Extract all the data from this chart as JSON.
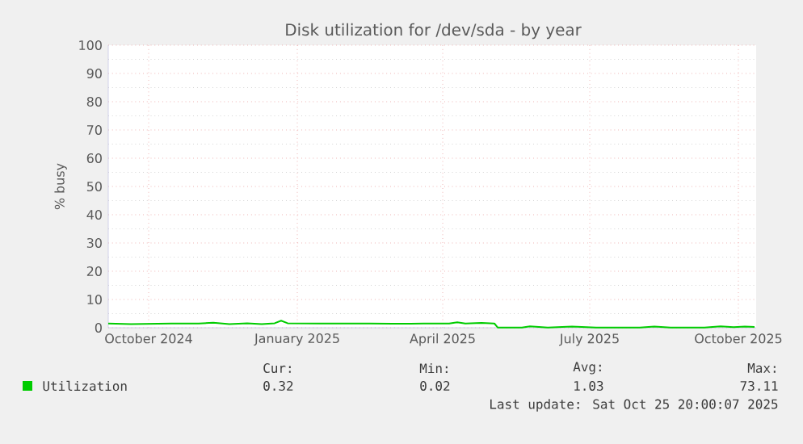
{
  "chart_data": {
    "type": "line",
    "title": "Disk utilization for /dev/sda - by year",
    "ylabel": "% busy",
    "x": [
      "2024-09-06",
      "2024-09-20",
      "2024-10-15",
      "2024-11-01",
      "2024-11-10",
      "2024-11-20",
      "2024-12-01",
      "2024-12-10",
      "2024-12-18",
      "2024-12-22",
      "2024-12-26",
      "2025-01-15",
      "2025-02-15",
      "2025-03-01",
      "2025-03-20",
      "2025-04-05",
      "2025-04-10",
      "2025-04-15",
      "2025-04-25",
      "2025-05-03",
      "2025-05-05",
      "2025-05-20",
      "2025-05-25",
      "2025-06-05",
      "2025-06-20",
      "2025-07-05",
      "2025-08-01",
      "2025-08-10",
      "2025-08-20",
      "2025-09-10",
      "2025-09-20",
      "2025-09-28",
      "2025-10-05",
      "2025-10-11"
    ],
    "series": [
      {
        "name": "Utilization",
        "color": "#00cc00",
        "values": [
          1.5,
          1.3,
          1.5,
          1.5,
          1.8,
          1.3,
          1.6,
          1.3,
          1.6,
          2.5,
          1.6,
          1.5,
          1.5,
          1.4,
          1.5,
          1.5,
          1.9,
          1.5,
          1.7,
          1.5,
          0.1,
          0.1,
          0.5,
          0.1,
          0.4,
          0.1,
          0.1,
          0.4,
          0.1,
          0.1,
          0.5,
          0.2,
          0.4,
          0.3
        ]
      }
    ],
    "xlim": [
      "2024-09-06",
      "2025-10-12"
    ],
    "xticks": [
      {
        "value": "2024-10-01",
        "label": "October 2024"
      },
      {
        "value": "2025-01-01",
        "label": "January 2025"
      },
      {
        "value": "2025-04-01",
        "label": "April 2025"
      },
      {
        "value": "2025-07-01",
        "label": "July 2025"
      },
      {
        "value": "2025-10-01",
        "label": "October 2025"
      }
    ],
    "ylim": [
      0,
      100
    ],
    "yticks": [
      0,
      10,
      20,
      30,
      40,
      50,
      60,
      70,
      80,
      90,
      100
    ],
    "grid": true,
    "legend": "bottom left",
    "annotations": [
      "Cur:",
      "Min:",
      "Avg:",
      "Max:",
      "0.32",
      "0.02",
      "1.03",
      "73.11",
      "Last update: Sat Oct 25 20:00:07 2025"
    ]
  }
}
